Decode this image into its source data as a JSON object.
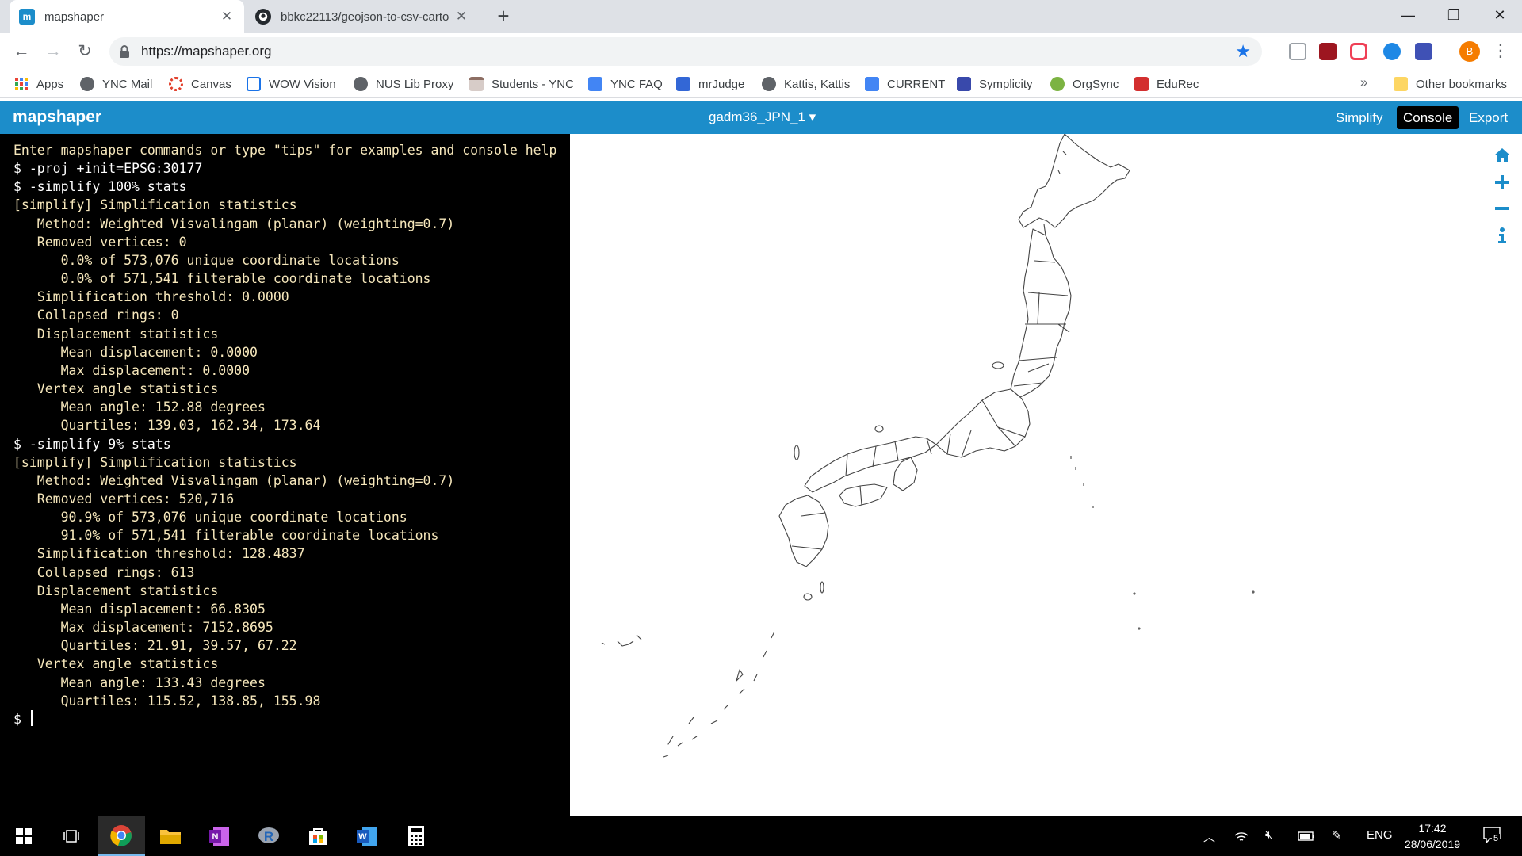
{
  "browser": {
    "tabs": [
      {
        "title": "mapshaper",
        "icon": "mapshaper-favicon",
        "active": true
      },
      {
        "title": "bbkc22113/geojson-to-csv-carto",
        "icon": "github-favicon",
        "active": false
      }
    ],
    "new_tab": "+",
    "window_controls": {
      "minimize": "—",
      "maximize": "❐",
      "close": "✕"
    },
    "url": "https://mapshaper.org",
    "profile_initial": "B",
    "bookmarks": [
      {
        "label": "Apps",
        "icon": "apps-grid-icon",
        "color": "#ea4335"
      },
      {
        "label": "YNC Mail",
        "icon": "globe-icon",
        "color": "#5f6368"
      },
      {
        "label": "Canvas",
        "icon": "canvas-icon",
        "color": "#e13f2b"
      },
      {
        "label": "WOW Vision",
        "icon": "wow-vision-icon",
        "color": "#1a73e8"
      },
      {
        "label": "NUS Lib Proxy",
        "icon": "globe-icon",
        "color": "#5f6368"
      },
      {
        "label": "Students - YNC",
        "icon": "calendar-icon",
        "color": "#8d6e63"
      },
      {
        "label": "YNC FAQ",
        "icon": "doc-icon",
        "color": "#4285f4"
      },
      {
        "label": "mrJudge",
        "icon": "mrjudge-icon",
        "color": "#3367d6"
      },
      {
        "label": "Kattis, Kattis",
        "icon": "globe-icon",
        "color": "#5f6368"
      },
      {
        "label": "CURRENT",
        "icon": "doc-icon",
        "color": "#4285f4"
      },
      {
        "label": "Symplicity",
        "icon": "symplicity-icon",
        "color": "#3949ab"
      },
      {
        "label": "OrgSync",
        "icon": "orgsync-icon",
        "color": "#7cb342"
      },
      {
        "label": "EduRec",
        "icon": "edurec-icon",
        "color": "#d32f2f"
      }
    ],
    "bookmarks_more": "»",
    "other_bookmarks": "Other bookmarks"
  },
  "mapshaper": {
    "logo": "mapshaper",
    "layer_name": "gadm36_JPN_1 ▾",
    "buttons": {
      "simplify": "Simplify",
      "console": "Console",
      "export": "Export"
    },
    "accent_color": "#1c8dca"
  },
  "console": {
    "lines": [
      {
        "text": "Enter mapshaper commands or type \"tips\" for examples and console help",
        "kind": "info"
      },
      {
        "text": "$ -proj +init=EPSG:30177",
        "kind": "cmd"
      },
      {
        "text": "$ -simplify 100% stats",
        "kind": "cmd"
      },
      {
        "text": "[simplify] Simplification statistics",
        "kind": "info"
      },
      {
        "text": "   Method: Weighted Visvalingam (planar) (weighting=0.7)",
        "kind": "info"
      },
      {
        "text": "   Removed vertices: 0",
        "kind": "info"
      },
      {
        "text": "      0.0% of 573,076 unique coordinate locations",
        "kind": "info"
      },
      {
        "text": "      0.0% of 571,541 filterable coordinate locations",
        "kind": "info"
      },
      {
        "text": "   Simplification threshold: 0.0000",
        "kind": "info"
      },
      {
        "text": "   Collapsed rings: 0",
        "kind": "info"
      },
      {
        "text": "   Displacement statistics",
        "kind": "info"
      },
      {
        "text": "      Mean displacement: 0.0000",
        "kind": "info"
      },
      {
        "text": "      Max displacement: 0.0000",
        "kind": "info"
      },
      {
        "text": "   Vertex angle statistics",
        "kind": "info"
      },
      {
        "text": "      Mean angle: 152.88 degrees",
        "kind": "info"
      },
      {
        "text": "      Quartiles: 139.03, 162.34, 173.64",
        "kind": "info"
      },
      {
        "text": "$ -simplify 9% stats",
        "kind": "cmd"
      },
      {
        "text": "[simplify] Simplification statistics",
        "kind": "info"
      },
      {
        "text": "   Method: Weighted Visvalingam (planar) (weighting=0.7)",
        "kind": "info"
      },
      {
        "text": "   Removed vertices: 520,716",
        "kind": "info"
      },
      {
        "text": "      90.9% of 573,076 unique coordinate locations",
        "kind": "info"
      },
      {
        "text": "      91.0% of 571,541 filterable coordinate locations",
        "kind": "info"
      },
      {
        "text": "   Simplification threshold: 128.4837",
        "kind": "info"
      },
      {
        "text": "   Collapsed rings: 613",
        "kind": "info"
      },
      {
        "text": "   Displacement statistics",
        "kind": "info"
      },
      {
        "text": "      Mean displacement: 66.8305",
        "kind": "info"
      },
      {
        "text": "      Max displacement: 7152.8695",
        "kind": "info"
      },
      {
        "text": "      Quartiles: 21.91, 39.57, 67.22",
        "kind": "info"
      },
      {
        "text": "   Vertex angle statistics",
        "kind": "info"
      },
      {
        "text": "      Mean angle: 133.43 degrees",
        "kind": "info"
      },
      {
        "text": "      Quartiles: 115.52, 138.85, 155.98",
        "kind": "info"
      }
    ],
    "prompt": "$ "
  },
  "map": {
    "controls": [
      "home-icon",
      "zoom-in-icon",
      "zoom-out-icon",
      "info-icon"
    ],
    "stroke_color": "#444444"
  },
  "taskbar": {
    "apps": [
      "start-icon",
      "task-view-icon",
      "chrome-icon",
      "file-explorer-icon",
      "onenote-icon",
      "r-icon",
      "store-icon",
      "word-icon",
      "calculator-icon"
    ],
    "language": "ENG",
    "time": "17:42",
    "date": "28/06/2019",
    "notifications": "5"
  }
}
